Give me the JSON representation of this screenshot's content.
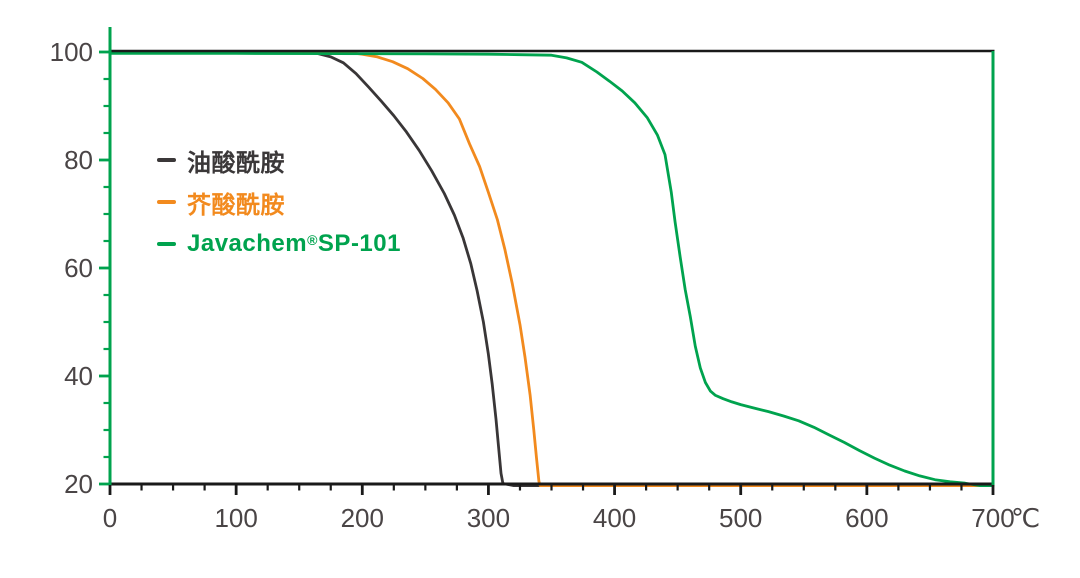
{
  "page": {
    "background": "#ffffff"
  },
  "legend": {
    "items": [
      {
        "name": "oleamide",
        "pre": "油酸酰胺",
        "sup": "",
        "post": "",
        "color": "#3B3839"
      },
      {
        "name": "erucamide",
        "pre": "芥酸酰胺",
        "sup": "",
        "post": "",
        "color": "#F28A1E"
      },
      {
        "name": "javachem-sp101",
        "pre": "Javachem",
        "sup": "®",
        "post": "SP-101",
        "color": "#00A34E"
      }
    ]
  },
  "chart_data": {
    "type": "line",
    "title": "",
    "xlabel": "",
    "ylabel": "",
    "x_unit": "℃",
    "xlim": [
      0,
      700
    ],
    "ylim": [
      20,
      100
    ],
    "grid": false,
    "legend_position": "upper-left-inside",
    "x_tick_labels": [
      "0",
      "100",
      "200",
      "300",
      "400",
      "500",
      "600",
      "700"
    ],
    "x_major_ticks": [
      0,
      100,
      200,
      300,
      400,
      500,
      600,
      700
    ],
    "x_minor_step": 25,
    "y_tick_labels": [
      "20",
      "40",
      "60",
      "80",
      "100"
    ],
    "y_major_ticks": [
      20,
      40,
      60,
      80,
      100
    ],
    "y_minor_step": 5,
    "axis_colors": {
      "left_spine": "#00A34E",
      "right_spine": "#00A34E",
      "top_spine": "#1A1A1A",
      "bottom_spine": "#1A1A1A",
      "y_ticks": "#00A34E",
      "x_ticks": "#1A1A1A",
      "tick_labels": "#4A4546"
    },
    "series": [
      {
        "name": "油酸酰胺",
        "color": "#393637",
        "points": [
          [
            0,
            100
          ],
          [
            80,
            100
          ],
          [
            140,
            100
          ],
          [
            155,
            99.9
          ],
          [
            165,
            99.7
          ],
          [
            175,
            99.1
          ],
          [
            185,
            98.0
          ],
          [
            195,
            96.0
          ],
          [
            205,
            93.5
          ],
          [
            215,
            90.9
          ],
          [
            225,
            88.2
          ],
          [
            235,
            85.2
          ],
          [
            245,
            81.8
          ],
          [
            255,
            78.0
          ],
          [
            265,
            73.8
          ],
          [
            273,
            69.8
          ],
          [
            280,
            65.5
          ],
          [
            286,
            60.8
          ],
          [
            291,
            55.8
          ],
          [
            296,
            50.0
          ],
          [
            300,
            44.0
          ],
          [
            303,
            38.5
          ],
          [
            306,
            32.0
          ],
          [
            308,
            27.0
          ],
          [
            310,
            22.0
          ],
          [
            311.5,
            20.1
          ],
          [
            320,
            20
          ],
          [
            450,
            20
          ],
          [
            700,
            20
          ]
        ]
      },
      {
        "name": "芥酸酰胺",
        "color": "#F28A1E",
        "points": [
          [
            0,
            100
          ],
          [
            100,
            100
          ],
          [
            170,
            100
          ],
          [
            190,
            99.9
          ],
          [
            200,
            99.6
          ],
          [
            212,
            99.1
          ],
          [
            224,
            98.2
          ],
          [
            236,
            96.9
          ],
          [
            248,
            95.1
          ],
          [
            258,
            93.1
          ],
          [
            268,
            90.6
          ],
          [
            277,
            87.6
          ],
          [
            285,
            83.0
          ],
          [
            293,
            78.8
          ],
          [
            300,
            74.0
          ],
          [
            307,
            69.0
          ],
          [
            313,
            63.5
          ],
          [
            319,
            57.0
          ],
          [
            325,
            49.5
          ],
          [
            329,
            43.5
          ],
          [
            333,
            36.5
          ],
          [
            336,
            30.0
          ],
          [
            338,
            25.0
          ],
          [
            340,
            20.5
          ],
          [
            341,
            20.05
          ],
          [
            350,
            20
          ],
          [
            500,
            20
          ],
          [
            700,
            20
          ]
        ]
      },
      {
        "name": "Javachem®SP-101",
        "color": "#00A34E",
        "points": [
          [
            0,
            99.75
          ],
          [
            100,
            99.75
          ],
          [
            180,
            99.7
          ],
          [
            250,
            99.65
          ],
          [
            300,
            99.6
          ],
          [
            325,
            99.5
          ],
          [
            350,
            99.4
          ],
          [
            362,
            98.9
          ],
          [
            374,
            98.1
          ],
          [
            386,
            96.3
          ],
          [
            396,
            94.6
          ],
          [
            406,
            92.8
          ],
          [
            416,
            90.6
          ],
          [
            426,
            87.8
          ],
          [
            434,
            84.6
          ],
          [
            440,
            81.0
          ],
          [
            445,
            74.0
          ],
          [
            448,
            68.5
          ],
          [
            452,
            62.0
          ],
          [
            456,
            56.0
          ],
          [
            460,
            51.0
          ],
          [
            464,
            45.5
          ],
          [
            468,
            41.5
          ],
          [
            472,
            38.8
          ],
          [
            476,
            37.2
          ],
          [
            480,
            36.4
          ],
          [
            486,
            35.8
          ],
          [
            493,
            35.2
          ],
          [
            500,
            34.7
          ],
          [
            510,
            34.1
          ],
          [
            522,
            33.4
          ],
          [
            534,
            32.6
          ],
          [
            546,
            31.7
          ],
          [
            558,
            30.5
          ],
          [
            570,
            29.1
          ],
          [
            582,
            27.7
          ],
          [
            594,
            26.2
          ],
          [
            606,
            24.8
          ],
          [
            618,
            23.5
          ],
          [
            630,
            22.4
          ],
          [
            642,
            21.5
          ],
          [
            654,
            20.8
          ],
          [
            666,
            20.4
          ],
          [
            678,
            20.15
          ],
          [
            690,
            20.04
          ],
          [
            700,
            20
          ]
        ]
      }
    ]
  }
}
